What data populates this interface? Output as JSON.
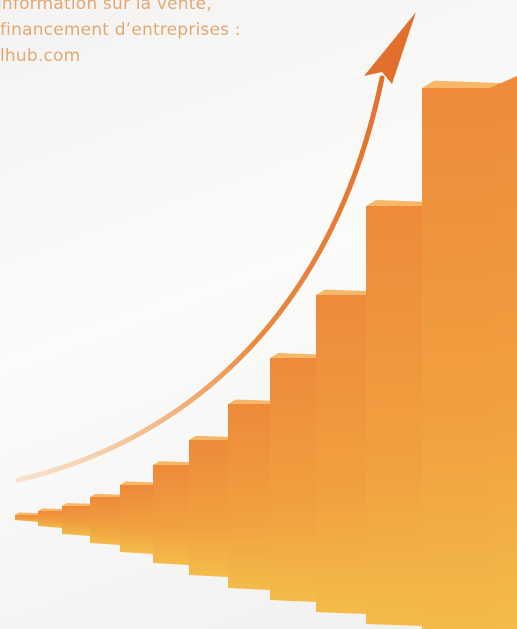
{
  "text": {
    "lines": [
      "information sur la vente,",
      "financement d’entreprises :",
      "lhub.com"
    ]
  }
}
